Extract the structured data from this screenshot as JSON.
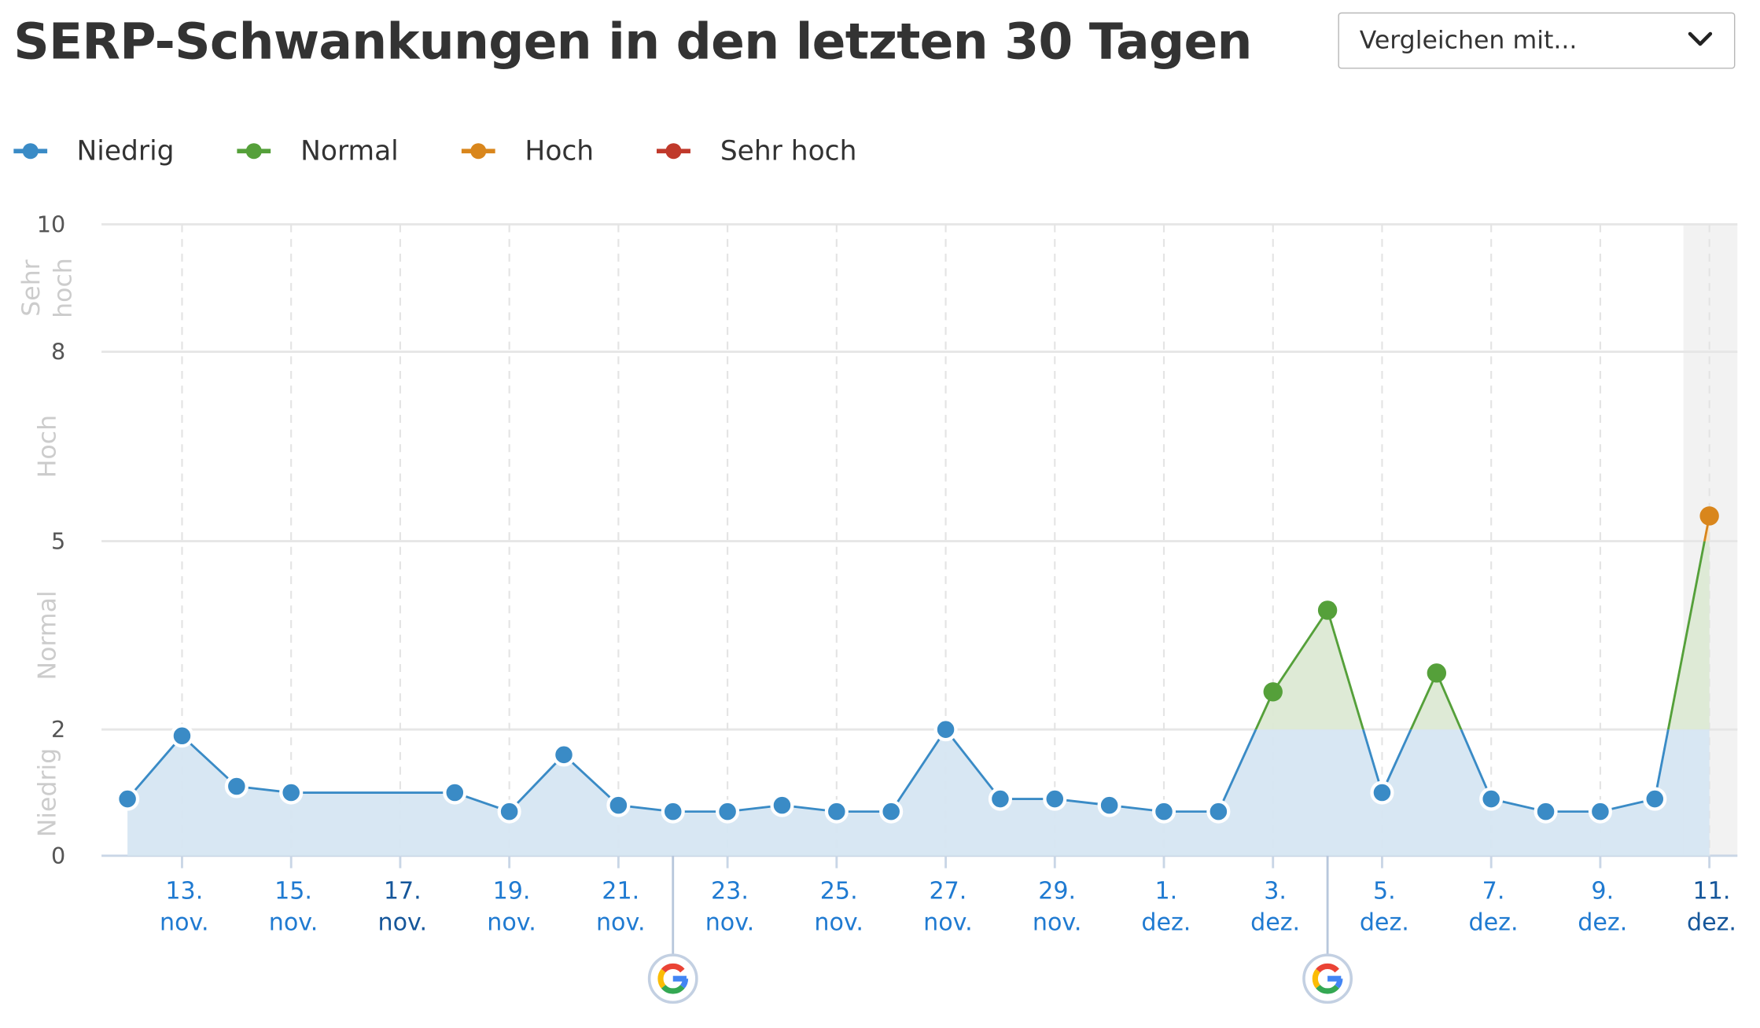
{
  "title": "SERP-Schwankungen in den letzten 30 Tagen",
  "compare_dropdown": {
    "label": "Vergleichen mit...",
    "icon": "chevron-down-icon"
  },
  "colors": {
    "niedrig": "#3a8bc6",
    "normal": "#55a03a",
    "hoch": "#d9861c",
    "sehr_hoch": "#c0392b",
    "niedrig_fill": "#d6e6f2",
    "normal_fill": "#dce9d4",
    "hoch_fill": "#f5e3c7",
    "axis_label": "#cccccc",
    "tick_label": "#1f7ad1"
  },
  "legend": [
    {
      "label": "Niedrig",
      "color": "#3a8bc6"
    },
    {
      "label": "Normal",
      "color": "#55a03a"
    },
    {
      "label": "Hoch",
      "color": "#d9861c"
    },
    {
      "label": "Sehr hoch",
      "color": "#c0392b"
    }
  ],
  "chart_data": {
    "type": "line",
    "title": "SERP-Schwankungen in den letzten 30 Tagen",
    "y_ticks": [
      0,
      2,
      5,
      8,
      10
    ],
    "ylim": [
      0,
      10
    ],
    "y_scale": "piecewise-linear by zone",
    "zones": [
      {
        "label": "Niedrig",
        "range": [
          0,
          2
        ]
      },
      {
        "label": "Normal",
        "range": [
          2,
          5
        ]
      },
      {
        "label": "Hoch",
        "range": [
          5,
          8
        ]
      },
      {
        "label": "Sehr hoch",
        "range": [
          8,
          10
        ]
      }
    ],
    "x": [
      "12. nov.",
      "13. nov.",
      "14. nov.",
      "15. nov.",
      "16. nov.",
      "17. nov.",
      "18. nov.",
      "19. nov.",
      "20. nov.",
      "21. nov.",
      "22. nov.",
      "23. nov.",
      "24. nov.",
      "25. nov.",
      "26. nov.",
      "27. nov.",
      "28. nov.",
      "29. nov.",
      "30. nov.",
      "1. dez.",
      "2. dez.",
      "3. dez.",
      "4. dez.",
      "5. dez.",
      "6. dez.",
      "7. dez.",
      "8. dez.",
      "9. dez.",
      "10. dez.",
      "11. dez."
    ],
    "values": [
      0.9,
      1.9,
      1.1,
      1.0,
      null,
      null,
      1.0,
      0.7,
      1.6,
      0.8,
      0.7,
      0.7,
      0.8,
      0.7,
      0.7,
      2.0,
      0.9,
      0.9,
      0.8,
      0.7,
      0.7,
      2.6,
      3.9,
      1.0,
      2.9,
      0.9,
      0.7,
      0.7,
      0.9,
      5.4
    ],
    "x_tick_labels": [
      {
        "day": "13.",
        "month": "nov."
      },
      {
        "day": "15.",
        "month": "nov."
      },
      {
        "day": "17.",
        "month": "nov."
      },
      {
        "day": "19.",
        "month": "nov."
      },
      {
        "day": "21.",
        "month": "nov."
      },
      {
        "day": "23.",
        "month": "nov."
      },
      {
        "day": "25.",
        "month": "nov."
      },
      {
        "day": "27.",
        "month": "nov."
      },
      {
        "day": "29.",
        "month": "nov."
      },
      {
        "day": "1.",
        "month": "dez."
      },
      {
        "day": "3.",
        "month": "dez."
      },
      {
        "day": "5.",
        "month": "dez."
      },
      {
        "day": "7.",
        "month": "dez."
      },
      {
        "day": "9.",
        "month": "dez."
      },
      {
        "day": "11.",
        "month": "dez."
      }
    ],
    "google_update_markers": [
      "22. nov.",
      "4. dez."
    ],
    "highlighted_day": "11. dez.",
    "grid": true,
    "legend_placement": "top-left"
  }
}
